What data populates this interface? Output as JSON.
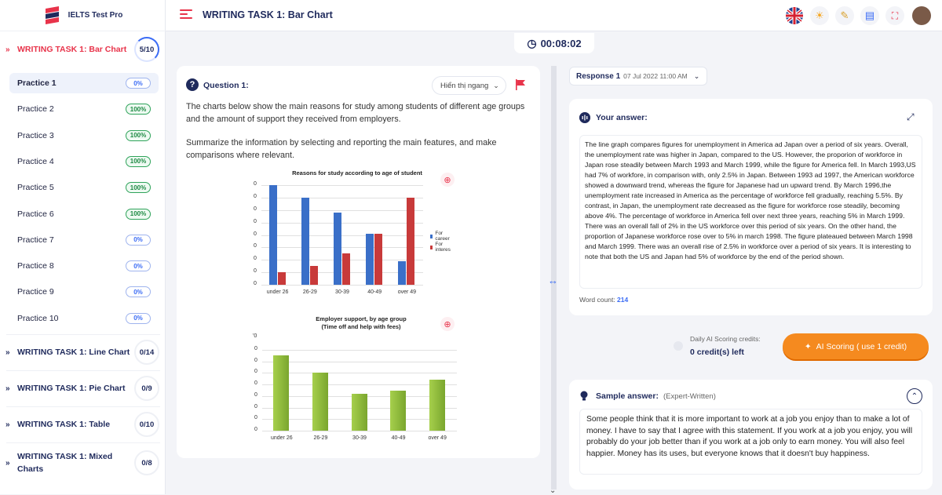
{
  "app": {
    "name": "IELTS Test Pro"
  },
  "header": {
    "title": "WRITING TASK 1: Bar Chart"
  },
  "timer": {
    "value": "00:08:02"
  },
  "sidebar": {
    "active_section": {
      "title": "WRITING TASK 1: Bar Chart",
      "count": "5/10"
    },
    "practices": [
      {
        "label": "Practice 1",
        "badge": "0%"
      },
      {
        "label": "Practice 2",
        "badge": "100%"
      },
      {
        "label": "Practice 3",
        "badge": "100%"
      },
      {
        "label": "Practice 4",
        "badge": "100%"
      },
      {
        "label": "Practice 5",
        "badge": "100%"
      },
      {
        "label": "Practice 6",
        "badge": "100%"
      },
      {
        "label": "Practice 7",
        "badge": "0%"
      },
      {
        "label": "Practice 8",
        "badge": "0%"
      },
      {
        "label": "Practice 9",
        "badge": "0%"
      },
      {
        "label": "Practice 10",
        "badge": "0%"
      }
    ],
    "sections": [
      {
        "title": "WRITING TASK 1: Line Chart",
        "count": "0/14"
      },
      {
        "title": "WRITING TASK 1: Pie Chart",
        "count": "0/9"
      },
      {
        "title": "WRITING TASK 1: Table",
        "count": "0/10"
      },
      {
        "title": "WRITING TASK 1: Mixed Charts",
        "count": "0/8"
      }
    ]
  },
  "question": {
    "title": "Question 1:",
    "display_option": "Hiển thị ngang",
    "paragraph1": "The charts below show the main reasons for study among students of different age groups and the amount of support they received from employers.",
    "paragraph2": "Summarize the information by selecting and reporting the main features, and make comparisons where relevant."
  },
  "chart_data": [
    {
      "type": "bar",
      "title": "Reasons for study according to age of student",
      "categories": [
        "under 26",
        "26-29",
        "30-39",
        "40-49",
        "over 49"
      ],
      "y_ticks": [
        "0",
        "0",
        "0",
        "0",
        "0",
        "0",
        "0",
        "0",
        "0"
      ],
      "ylim": [
        0,
        80
      ],
      "legend_position": "right",
      "series": [
        {
          "name": "For career",
          "color": "#3a6fc8",
          "values": [
            80,
            70,
            58,
            41,
            19
          ]
        },
        {
          "name": "For interes",
          "color": "#c83a3a",
          "values": [
            10,
            15,
            25,
            41,
            70
          ]
        }
      ]
    },
    {
      "type": "bar",
      "title": "Employer support, by age group\n(Time off and help with fees)",
      "categories": [
        "under 26",
        "26-29",
        "30-39",
        "40-49",
        "over 49"
      ],
      "y_ticks": [
        "0",
        "0",
        "0",
        "0",
        "0",
        "0",
        "0",
        "0"
      ],
      "top_tick": "'0",
      "ylim": [
        0,
        70
      ],
      "series": [
        {
          "color": "#8dbb3a",
          "values": [
            65,
            50,
            32,
            35,
            44
          ]
        }
      ]
    }
  ],
  "response": {
    "label": "Response 1",
    "date": "07 Jul 2022 11:00 AM"
  },
  "answer": {
    "title": "Your answer:",
    "text": "The line graph compares figures for unemployment in America ad Japan over a period of six years. Overall, the unemployment rate was higher in Japan, compared to the US. However, the proporion of workforce in Japan rose steadily between March 1993 and March 1999, while the figure for America fell. In March 1993,US had 7% of workfore, in comparison with, only 2.5% in Japan. Between 1993 ad 1997, the American workforce showed a downward trend, whereas the figure for Japanese had un upward trend. By March 1996,the unemployment rate increased in America as the percentage of workforce fell gradually, reaching 5.5%. By contrast, in Japan, the unemployment rate decreased as the figure for workforce rose steadily, becoming above 4%. The percentage of workforce in America fell over next three years, reaching 5% in March 1999. There was an overall fall of 2% in the US workforce over this period of six years. On the other hand, the proportion of Japanese workforce rose over to 5% in march 1998. The figure plateaued between March 1998 and March 1999. There was an overall rise of 2.5% in workforce over a period of six years. It is interesting to note that both the US and Japan had 5% of workforce by the end of the period shown.",
    "word_count_label": "Word count:",
    "word_count": "214"
  },
  "ai": {
    "label": "Daily AI Scoring credits:",
    "credits": "0 credit(s) left",
    "button": "AI Scoring ( use 1 credit)"
  },
  "sample": {
    "title": "Sample answer:",
    "subtitle": "(Expert-Written)",
    "text": "Some people think that it is more important to work at a job you enjoy than to make a lot of money. I have to say that I agree with this statement. If you work at a job you enjoy, you will probably do your job better than if you work at a job only to earn money. You will also feel happier. Money has its uses, but everyone knows that it doesn't buy happiness."
  }
}
